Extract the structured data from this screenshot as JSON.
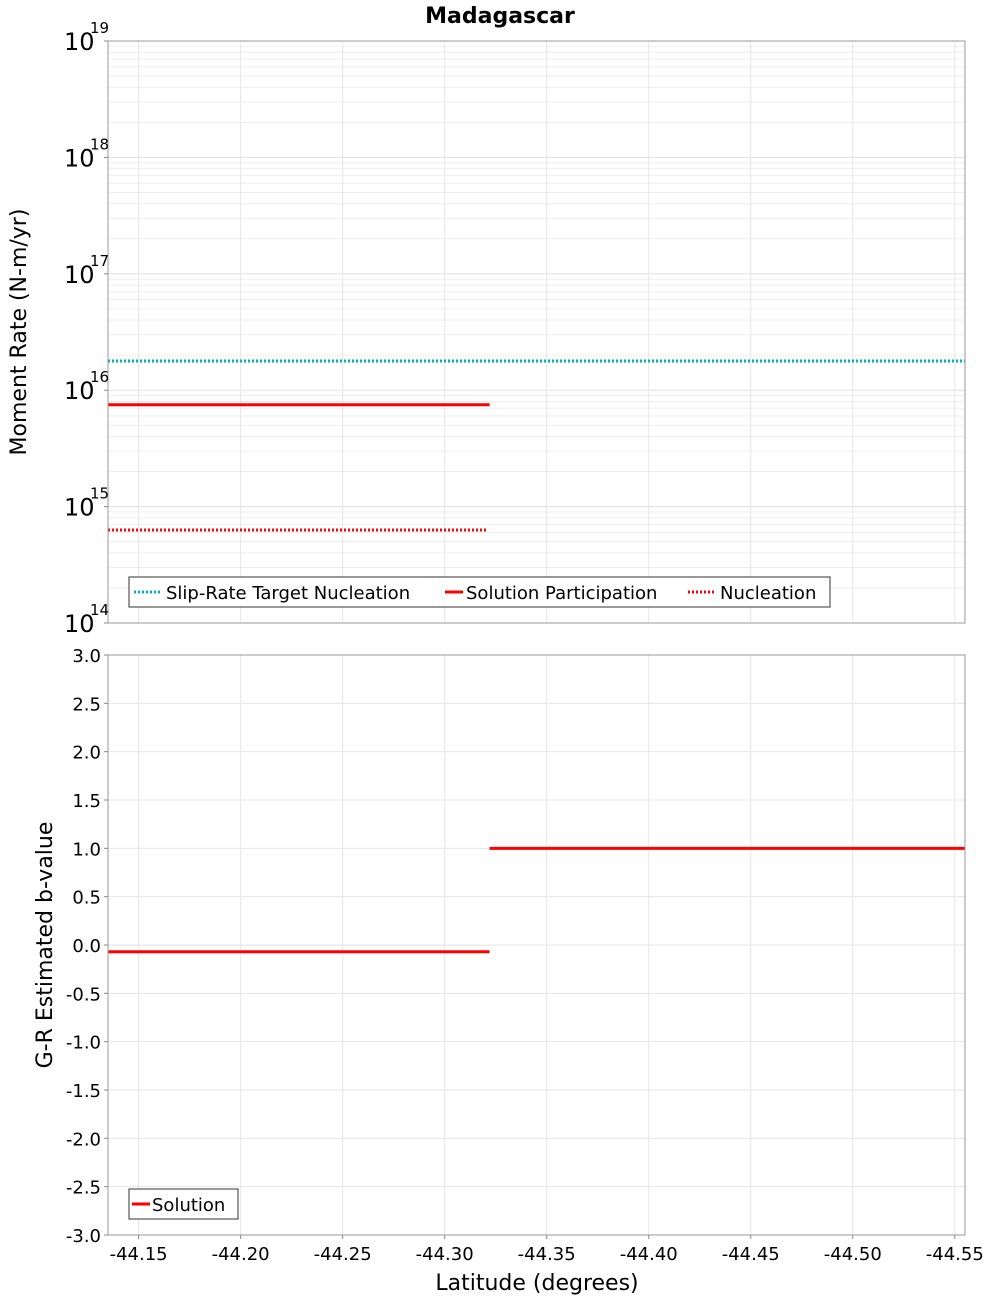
{
  "chart_data": [
    {
      "type": "line",
      "title": "Madagascar",
      "xlabel": "Latitude (degrees)",
      "ylabel": "Moment Rate (N-m/yr)",
      "yscale": "log",
      "ylim": [
        100000000000000.0,
        1e+19
      ],
      "xlim": [
        -44.135,
        -44.555
      ],
      "y_ticks": [
        {
          "base": "10",
          "exp": "14",
          "value": 100000000000000.0
        },
        {
          "base": "10",
          "exp": "15",
          "value": 1000000000000000.0
        },
        {
          "base": "10",
          "exp": "16",
          "value": 1e+16
        },
        {
          "base": "10",
          "exp": "17",
          "value": 1e+17
        },
        {
          "base": "10",
          "exp": "18",
          "value": 1e+18
        },
        {
          "base": "10",
          "exp": "19",
          "value": 1e+19
        }
      ],
      "series": [
        {
          "name": "Slip-Rate Target Nucleation",
          "color": "#00b3b3",
          "style": "dotted",
          "segments": [
            [
              -44.135,
              -44.555,
              1.78e+16
            ]
          ]
        },
        {
          "name": "Solution Participation",
          "color": "#ff0000",
          "style": "solid",
          "segments": [
            [
              -44.135,
              -44.322,
              7500000000000000.0
            ]
          ]
        },
        {
          "name": "Nucleation",
          "color": "#ff0000",
          "style": "dotted",
          "segments": [
            [
              -44.135,
              -44.321,
              630000000000000.0
            ]
          ]
        }
      ],
      "legend": "bottom-left"
    },
    {
      "type": "line",
      "title": "",
      "xlabel": "Latitude (degrees)",
      "ylabel": "G-R Estimated b-value",
      "ylim": [
        -3.0,
        3.0
      ],
      "xlim": [
        -44.135,
        -44.555
      ],
      "y_ticks": [
        "-3.0",
        "-2.5",
        "-2.0",
        "-1.5",
        "-1.0",
        "-0.5",
        "0.0",
        "0.5",
        "1.0",
        "1.5",
        "2.0",
        "2.5",
        "3.0"
      ],
      "x_ticks": [
        "-44.15",
        "-44.20",
        "-44.25",
        "-44.30",
        "-44.35",
        "-44.40",
        "-44.45",
        "-44.50",
        "-44.55"
      ],
      "series": [
        {
          "name": "Solution",
          "color": "#ff0000",
          "style": "solid",
          "segments": [
            [
              -44.135,
              -44.322,
              -0.07
            ],
            [
              -44.322,
              -44.555,
              1.0
            ]
          ]
        }
      ],
      "legend": "bottom-left"
    }
  ]
}
